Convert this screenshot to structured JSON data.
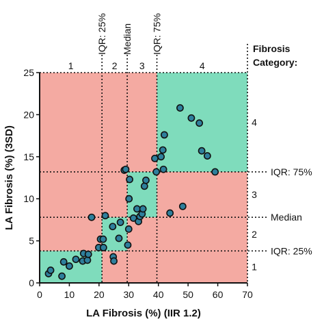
{
  "colors": {
    "red_zone": "#f4aaa2",
    "green_zone": "#7fdcbc",
    "point_fill": "#2e7f9c",
    "point_stroke": "#111111",
    "axis": "#111111"
  },
  "chart_data": {
    "type": "scatter",
    "xlabel": "LA Fibrosis (%) (IIR 1.2)",
    "ylabel": "LA Fibrosis (%) (3SD)",
    "xlim": [
      0,
      70
    ],
    "ylim": [
      0,
      25
    ],
    "x_ticks": [
      0,
      10,
      20,
      30,
      40,
      50,
      60,
      70
    ],
    "y_ticks": [
      0,
      5,
      10,
      15,
      20,
      25
    ],
    "x_thresholds": [
      {
        "value": 21,
        "label": "IQR: 25%"
      },
      {
        "value": 29.5,
        "label": "Median"
      },
      {
        "value": 39.5,
        "label": "IQR: 75%"
      }
    ],
    "y_thresholds": [
      {
        "value": 3.8,
        "label": "IQR: 25%"
      },
      {
        "value": 7.8,
        "label": "Median"
      },
      {
        "value": 13.2,
        "label": "IQR: 75%"
      }
    ],
    "categories_title": "Fibrosis Category:",
    "x_categories": [
      {
        "label": "1",
        "from": 0,
        "to": 21
      },
      {
        "label": "2",
        "from": 21,
        "to": 29.5
      },
      {
        "label": "3",
        "from": 29.5,
        "to": 39.5
      },
      {
        "label": "4",
        "from": 39.5,
        "to": 70
      }
    ],
    "y_categories": [
      {
        "label": "1",
        "from": 0,
        "to": 3.8
      },
      {
        "label": "2",
        "from": 3.8,
        "to": 7.8
      },
      {
        "label": "3",
        "from": 7.8,
        "to": 13.2
      },
      {
        "label": "4",
        "from": 13.2,
        "to": 25
      }
    ],
    "points": [
      {
        "x": 3,
        "y": 1.1
      },
      {
        "x": 3.7,
        "y": 1.5
      },
      {
        "x": 7.5,
        "y": 0.8
      },
      {
        "x": 8.1,
        "y": 2.5
      },
      {
        "x": 10,
        "y": 2
      },
      {
        "x": 12.2,
        "y": 2.8
      },
      {
        "x": 14.5,
        "y": 2.6
      },
      {
        "x": 14.8,
        "y": 3.5
      },
      {
        "x": 16.1,
        "y": 2.7
      },
      {
        "x": 16.4,
        "y": 3.4
      },
      {
        "x": 17.5,
        "y": 7.8
      },
      {
        "x": 19.9,
        "y": 4.2
      },
      {
        "x": 20.5,
        "y": 5.2
      },
      {
        "x": 21.4,
        "y": 5.2
      },
      {
        "x": 22.1,
        "y": 8
      },
      {
        "x": 21.5,
        "y": 4.2
      },
      {
        "x": 24.8,
        "y": 3.1
      },
      {
        "x": 25,
        "y": 2.6
      },
      {
        "x": 24.6,
        "y": 6.7
      },
      {
        "x": 27.2,
        "y": 7.2
      },
      {
        "x": 26.7,
        "y": 5.3
      },
      {
        "x": 28.5,
        "y": 13.4
      },
      {
        "x": 29,
        "y": 13.5
      },
      {
        "x": 29.7,
        "y": 4.5
      },
      {
        "x": 30,
        "y": 6.4
      },
      {
        "x": 30.1,
        "y": 10
      },
      {
        "x": 30.3,
        "y": 12.3
      },
      {
        "x": 31.6,
        "y": 7.7
      },
      {
        "x": 32.8,
        "y": 8.8
      },
      {
        "x": 33.3,
        "y": 7.3
      },
      {
        "x": 33.8,
        "y": 7.9
      },
      {
        "x": 34.5,
        "y": 8.2
      },
      {
        "x": 34.8,
        "y": 8.8
      },
      {
        "x": 35.3,
        "y": 11.5
      },
      {
        "x": 35.8,
        "y": 12.2
      },
      {
        "x": 38.8,
        "y": 14.8
      },
      {
        "x": 39.3,
        "y": 13.2
      },
      {
        "x": 40.9,
        "y": 15
      },
      {
        "x": 41.5,
        "y": 15.8
      },
      {
        "x": 41.7,
        "y": 13.5
      },
      {
        "x": 42,
        "y": 17.6
      },
      {
        "x": 43.9,
        "y": 8.3
      },
      {
        "x": 47.3,
        "y": 20.8
      },
      {
        "x": 48.2,
        "y": 9.1
      },
      {
        "x": 51.1,
        "y": 19.6
      },
      {
        "x": 53.8,
        "y": 19
      },
      {
        "x": 54.6,
        "y": 15.7
      },
      {
        "x": 56.5,
        "y": 15.1
      },
      {
        "x": 59.1,
        "y": 13.2
      }
    ]
  }
}
